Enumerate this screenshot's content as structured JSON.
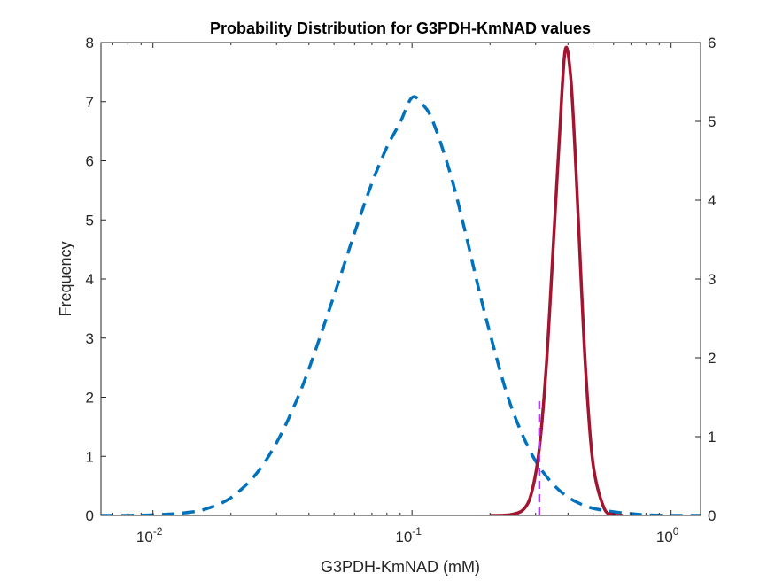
{
  "chart_data": {
    "type": "line",
    "title": "Probability Distribution for G3PDH-KmNAD values",
    "xlabel": "G3PDH-KmNAD (mM)",
    "ylabel": "Frequency",
    "x_scale": "log",
    "xlim": [
      0.0063,
      1.3
    ],
    "x_ticks": [
      {
        "value": 0.01,
        "base": "10",
        "exp": "-2"
      },
      {
        "value": 0.1,
        "base": "10",
        "exp": "-1"
      },
      {
        "value": 1,
        "base": "10",
        "exp": "0"
      }
    ],
    "ylim_left": [
      0,
      8
    ],
    "y_ticks_left": [
      "0",
      "1",
      "2",
      "3",
      "4",
      "5",
      "6",
      "7",
      "8"
    ],
    "ylim_right": [
      0,
      6
    ],
    "y_ticks_right": [
      "0",
      "1",
      "2",
      "3",
      "4",
      "5",
      "6"
    ],
    "grid": false,
    "series": [
      {
        "axis": "left",
        "style": "dashed",
        "color": "#0072BD",
        "x": [
          0.0063,
          0.008,
          0.01,
          0.013,
          0.016,
          0.02,
          0.025,
          0.03,
          0.035,
          0.04,
          0.05,
          0.06,
          0.07,
          0.08,
          0.09,
          0.1,
          0.11,
          0.12,
          0.14,
          0.16,
          0.18,
          0.2,
          0.23,
          0.26,
          0.3,
          0.35,
          0.4,
          0.45,
          0.5,
          0.6,
          0.7,
          0.8,
          1.0,
          1.3
        ],
        "y": [
          0.0,
          0.0,
          0.01,
          0.04,
          0.11,
          0.3,
          0.7,
          1.23,
          1.84,
          2.48,
          3.72,
          4.78,
          5.62,
          6.23,
          6.65,
          7.07,
          6.95,
          6.68,
          5.81,
          4.82,
          3.87,
          3.08,
          2.12,
          1.48,
          0.92,
          0.53,
          0.31,
          0.19,
          0.12,
          0.06,
          0.03,
          0.01,
          0.0,
          0.0
        ]
      },
      {
        "axis": "right",
        "style": "solid",
        "color": "#A2142F",
        "x": [
          0.2,
          0.24,
          0.27,
          0.29,
          0.31,
          0.33,
          0.35,
          0.37,
          0.39,
          0.41,
          0.43,
          0.45,
          0.47,
          0.5,
          0.55,
          0.6,
          0.65
        ],
        "y": [
          0.0,
          0.01,
          0.08,
          0.3,
          0.85,
          1.9,
          3.35,
          4.75,
          5.9,
          5.55,
          4.35,
          2.95,
          1.75,
          0.65,
          0.1,
          0.01,
          0.0
        ]
      },
      {
        "axis": "left",
        "style": "dashed",
        "color": "#B23CF5",
        "x": [
          0.31,
          0.31
        ],
        "y": [
          0,
          2
        ]
      }
    ]
  }
}
